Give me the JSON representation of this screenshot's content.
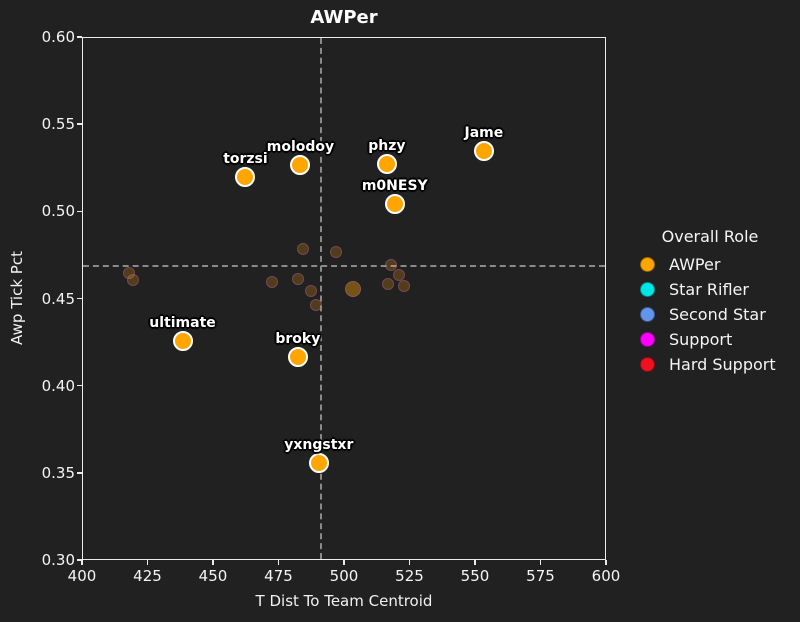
{
  "chart_data": {
    "type": "scatter",
    "title": "AWPer",
    "xlabel": "T Dist To Team Centroid",
    "ylabel": "Awp Tick Pct",
    "xlim": [
      400,
      600
    ],
    "ylim": [
      0.3,
      0.6
    ],
    "grid": false,
    "background_color": "#212121",
    "axis_color": "#ebebeb",
    "text_color": "#ffffff",
    "x_ticks": {
      "values": [
        400,
        425,
        450,
        475,
        500,
        525,
        550,
        575,
        600
      ],
      "labels": [
        "400",
        "425",
        "450",
        "475",
        "500",
        "525",
        "550",
        "575",
        "600"
      ]
    },
    "y_ticks": {
      "values": [
        0.3,
        0.35,
        0.4,
        0.45,
        0.5,
        0.55,
        0.6
      ],
      "labels": [
        "0.30",
        "0.35",
        "0.40",
        "0.45",
        "0.50",
        "0.55",
        "0.60"
      ]
    },
    "crosshair": {
      "x": 491,
      "y": 0.469,
      "color": "#8a8a8a",
      "style": "dashed"
    },
    "labeled_points": {
      "role": "AWPer",
      "color": "#FFA500",
      "edge_color": "#ffffff",
      "marker_size": 20,
      "points": [
        {
          "label": "torzsi",
          "x": 462,
          "y": 0.52
        },
        {
          "label": "molodoy",
          "x": 483,
          "y": 0.527
        },
        {
          "label": "phzy",
          "x": 516,
          "y": 0.528
        },
        {
          "label": "Jame",
          "x": 553,
          "y": 0.535
        },
        {
          "label": "m0NESY",
          "x": 519,
          "y": 0.505
        },
        {
          "label": "ultimate",
          "x": 438,
          "y": 0.426
        },
        {
          "label": "broky",
          "x": 482,
          "y": 0.417
        },
        {
          "label": "yxngstxr",
          "x": 490,
          "y": 0.356
        }
      ]
    },
    "background_points": {
      "color": "#FFA500",
      "alpha": 0.22,
      "edge_color": "rgba(190,90,200,0.35)",
      "default_size": 12,
      "points": [
        [
          417.5,
          0.465
        ],
        [
          419,
          0.461
        ],
        [
          472,
          0.46
        ],
        [
          482,
          0.462
        ],
        [
          484,
          0.479
        ],
        [
          487,
          0.455
        ],
        [
          489,
          0.447
        ],
        [
          496.5,
          0.477
        ],
        [
          503,
          0.456,
          16,
          0.38
        ],
        [
          516.5,
          0.459
        ],
        [
          517.5,
          0.47
        ],
        [
          520.5,
          0.464
        ],
        [
          522.5,
          0.458
        ]
      ]
    },
    "legend": {
      "title": "Overall Role",
      "position": "right",
      "items": [
        {
          "label": "AWPer",
          "color": "#FFA500"
        },
        {
          "label": "Star Rifler",
          "color": "#00E5E5"
        },
        {
          "label": "Second Star",
          "color": "#6495ED"
        },
        {
          "label": "Support",
          "color": "#FF00FF"
        },
        {
          "label": "Hard Support",
          "color": "#EE1122"
        }
      ]
    }
  }
}
